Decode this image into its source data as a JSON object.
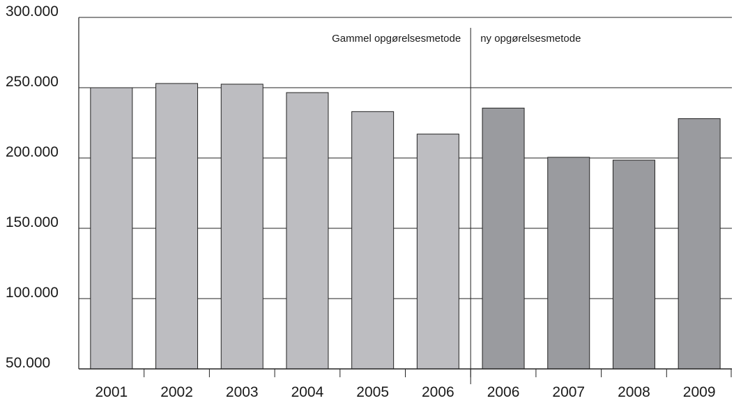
{
  "chart_data": {
    "type": "bar",
    "categories": [
      "2001",
      "2002",
      "2003",
      "2004",
      "2005",
      "2006",
      "2006",
      "2007",
      "2008",
      "2009"
    ],
    "series": [
      {
        "name": "Gammel opgørelsesmetode",
        "color": "#bdbdc1",
        "values": [
          250000,
          253000,
          252500,
          246500,
          233000,
          217000,
          null,
          null,
          null,
          null
        ]
      },
      {
        "name": "ny opgørelsesmetode",
        "color": "#9a9b9f",
        "values": [
          null,
          null,
          null,
          null,
          null,
          null,
          235500,
          200500,
          198500,
          228000
        ]
      }
    ],
    "ylim": [
      50000,
      300000
    ],
    "yticks": [
      {
        "value": 50000,
        "label": "50.000"
      },
      {
        "value": 100000,
        "label": "100.000"
      },
      {
        "value": 150000,
        "label": "150.000"
      },
      {
        "value": 200000,
        "label": "200.000"
      },
      {
        "value": 250000,
        "label": "250.000"
      },
      {
        "value": 300000,
        "label": "300.000"
      }
    ],
    "grid": true
  }
}
